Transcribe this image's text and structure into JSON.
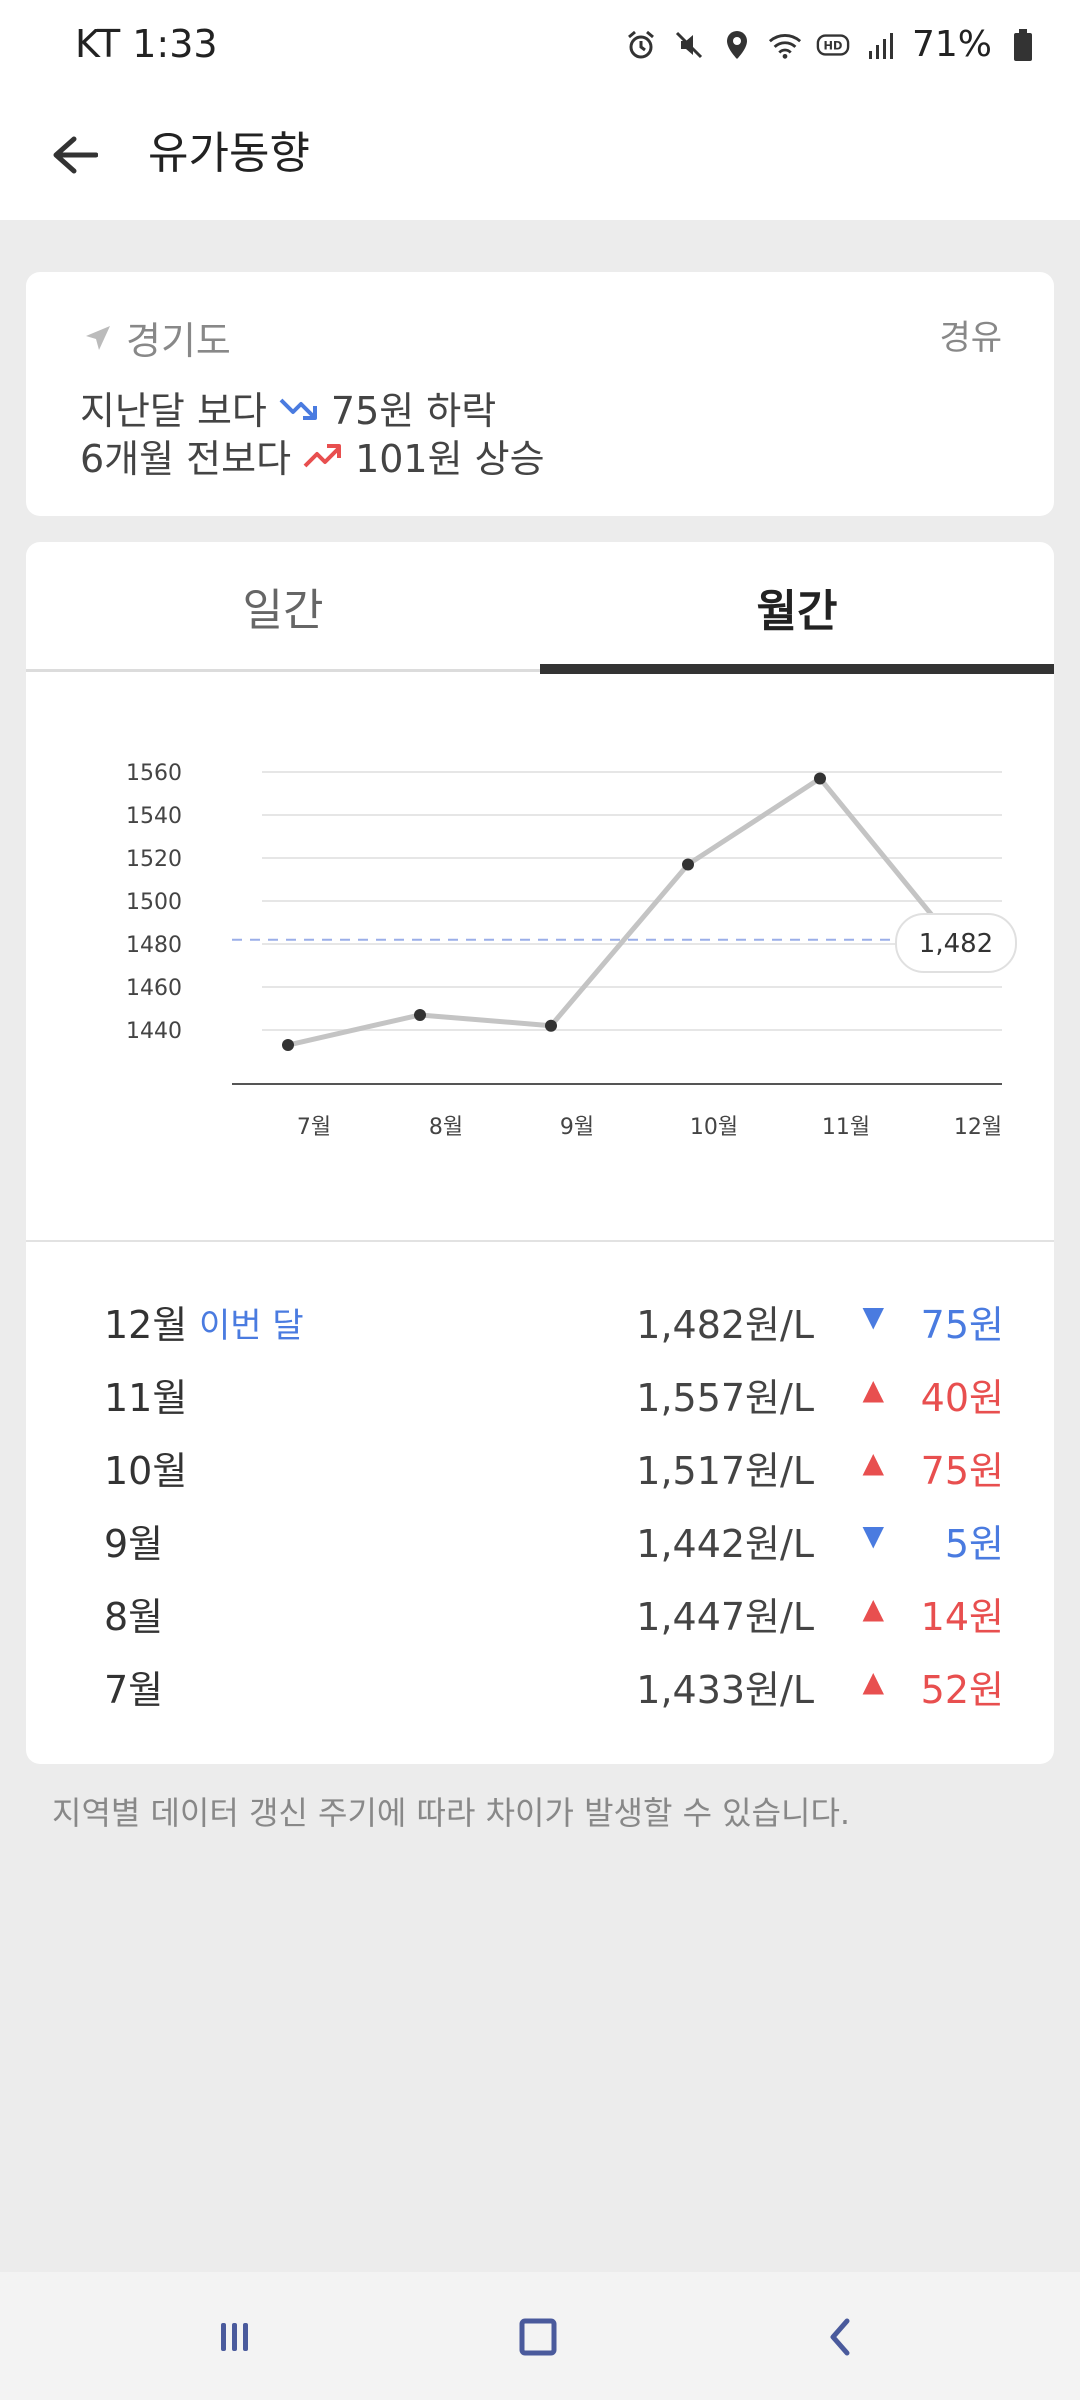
{
  "status_bar": {
    "carrier_time": "KT 1:33",
    "battery": "71%"
  },
  "app_bar": {
    "title": "유가동향"
  },
  "summary": {
    "region": "경기도",
    "fuel_type": "경유",
    "vs_last_month_label": "지난달 보다",
    "vs_last_month_value": "75원 하락",
    "vs_6months_label": "6개월 전보다",
    "vs_6months_value": "101원 상승"
  },
  "tabs": {
    "daily": "일간",
    "monthly": "월간",
    "selected": "월간"
  },
  "chart_data": {
    "type": "line",
    "categories": [
      "7월",
      "8월",
      "9월",
      "10월",
      "11월",
      "12월"
    ],
    "values": [
      1433,
      1447,
      1442,
      1517,
      1557,
      1482
    ],
    "yticks": [
      1440,
      1460,
      1480,
      1500,
      1520,
      1540,
      1560
    ],
    "ylim": [
      1420,
      1560
    ],
    "highlight_value": "1,482",
    "reference_line": 1482,
    "grid": true
  },
  "monthly": [
    {
      "month": "12월",
      "tag": "이번 달",
      "price": "1,482원/L",
      "direction": "down",
      "arrow": "▼",
      "diff": "75원"
    },
    {
      "month": "11월",
      "tag": "",
      "price": "1,557원/L",
      "direction": "up",
      "arrow": "▲",
      "diff": "40원"
    },
    {
      "month": "10월",
      "tag": "",
      "price": "1,517원/L",
      "direction": "up",
      "arrow": "▲",
      "diff": "75원"
    },
    {
      "month": "9월",
      "tag": "",
      "price": "1,442원/L",
      "direction": "down",
      "arrow": "▼",
      "diff": "5원"
    },
    {
      "month": "8월",
      "tag": "",
      "price": "1,447원/L",
      "direction": "up",
      "arrow": "▲",
      "diff": "14원"
    },
    {
      "month": "7월",
      "tag": "",
      "price": "1,433원/L",
      "direction": "up",
      "arrow": "▲",
      "diff": "52원"
    }
  ],
  "footnote": "지역별 데이터 갱신 주기에 따라 차이가 발생할 수 있습니다.",
  "colors": {
    "down": "#4a7be0",
    "up": "#e84f4f",
    "line": "#c4c4c4"
  }
}
